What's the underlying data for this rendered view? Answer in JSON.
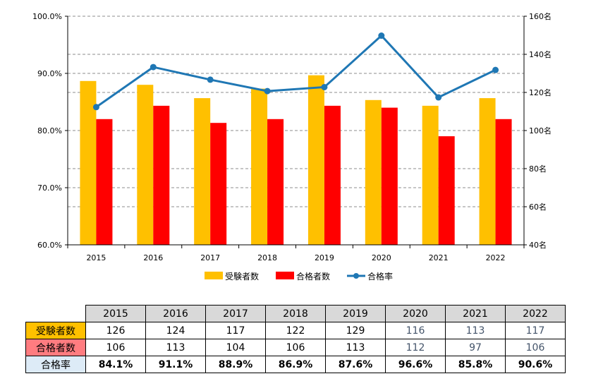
{
  "chart_data": {
    "type": "bar+line",
    "categories": [
      "2015",
      "2016",
      "2017",
      "2018",
      "2019",
      "2020",
      "2021",
      "2022"
    ],
    "series": [
      {
        "name": "受験者数",
        "kind": "bar",
        "axis": "right",
        "color": "#ffc000",
        "values": [
          126,
          124,
          117,
          122,
          129,
          116,
          113,
          117
        ]
      },
      {
        "name": "合格者数",
        "kind": "bar",
        "axis": "right",
        "color": "#ff0000",
        "values": [
          106,
          113,
          104,
          106,
          113,
          112,
          97,
          106
        ]
      },
      {
        "name": "合格率",
        "kind": "line",
        "axis": "left",
        "color": "#1f77b4",
        "values": [
          84.1,
          91.1,
          88.9,
          86.9,
          87.6,
          96.6,
          85.8,
          90.6
        ]
      }
    ],
    "left_axis": {
      "ylim": [
        60,
        100
      ],
      "ticks": [
        "60.0%",
        "70.0%",
        "80.0%",
        "90.0%",
        "100.0%"
      ]
    },
    "right_axis": {
      "ylim": [
        40,
        160
      ],
      "ticks": [
        "40名",
        "60名",
        "80名",
        "100名",
        "120名",
        "140名",
        "160名"
      ]
    },
    "grid": true,
    "legend": "bottom"
  },
  "table": {
    "years": [
      "2015",
      "2016",
      "2017",
      "2018",
      "2019",
      "2020",
      "2021",
      "2022"
    ],
    "rows": [
      {
        "label": "受験者数",
        "label_bg": "#ffc000",
        "cells": [
          "126",
          "124",
          "117",
          "122",
          "129",
          "116",
          "113",
          "117"
        ]
      },
      {
        "label": "合格者数",
        "label_bg": "#ff7c80",
        "cells": [
          "106",
          "113",
          "104",
          "106",
          "113",
          "112",
          "97",
          "106"
        ]
      },
      {
        "label": "合格率",
        "label_bg": "#ddebf7",
        "cells": [
          "84.1%",
          "91.1%",
          "88.9%",
          "86.9%",
          "87.6%",
          "96.6%",
          "85.8%",
          "90.6%"
        ]
      }
    ]
  }
}
